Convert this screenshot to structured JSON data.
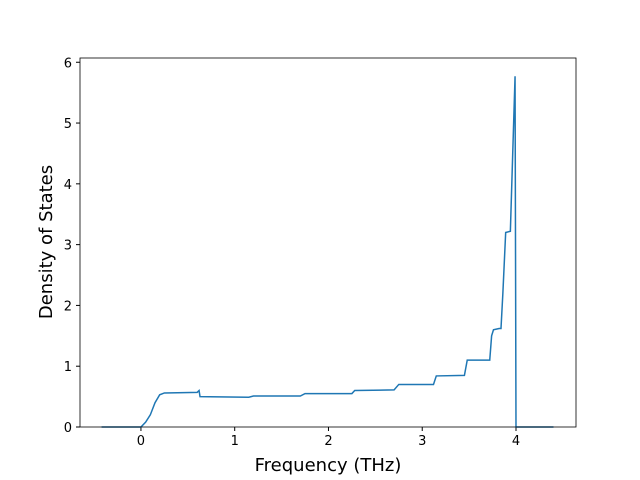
{
  "chart_data": {
    "type": "line",
    "x_label": "Frequency (THz)",
    "y_label": "Density of States",
    "x": [
      -0.42,
      0.0,
      0.05,
      0.1,
      0.15,
      0.2,
      0.25,
      0.6,
      0.62,
      0.63,
      1.15,
      1.2,
      1.7,
      1.75,
      2.25,
      2.28,
      2.7,
      2.75,
      3.12,
      3.15,
      3.45,
      3.48,
      3.72,
      3.74,
      3.76,
      3.82,
      3.84,
      3.86,
      3.89,
      3.94,
      3.99,
      4.0,
      4.4
    ],
    "series": [
      {
        "color": "#1f77b4",
        "values": [
          0,
          0,
          0.08,
          0.2,
          0.4,
          0.53,
          0.56,
          0.57,
          0.6,
          0.5,
          0.49,
          0.51,
          0.51,
          0.55,
          0.55,
          0.6,
          0.61,
          0.7,
          0.7,
          0.84,
          0.85,
          1.1,
          1.1,
          1.5,
          1.6,
          1.62,
          1.62,
          2.2,
          3.2,
          3.22,
          5.77,
          0,
          0
        ]
      }
    ],
    "xlim": [
      -0.65,
      4.64
    ],
    "xticks": [
      0,
      1,
      2,
      3,
      4
    ],
    "ylim": [
      0,
      6.07
    ],
    "yticks": [
      0,
      1,
      2,
      3,
      4,
      5,
      6
    ]
  }
}
